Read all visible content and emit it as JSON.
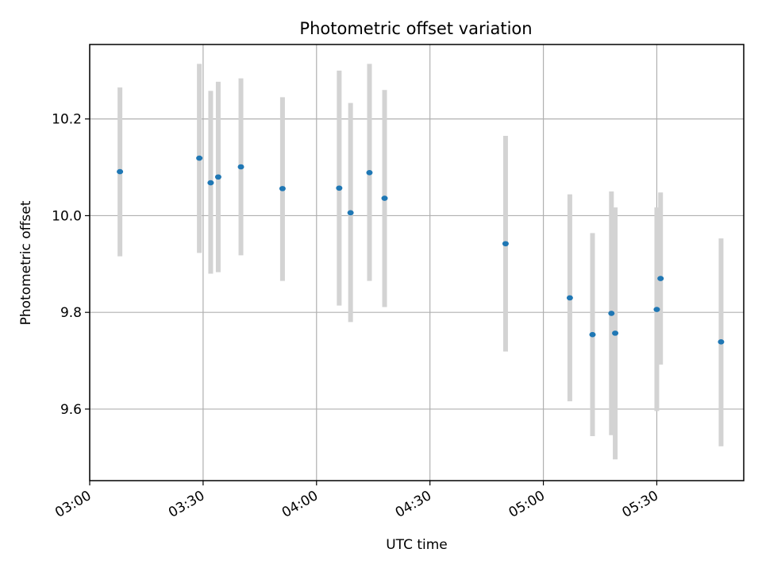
{
  "chart_data": {
    "type": "scatter",
    "title": "Photometric offset variation",
    "xlabel": "UTC time",
    "ylabel": "Photometric offset",
    "xlim": [
      "03:00",
      "05:53"
    ],
    "ylim": [
      9.452,
      10.354
    ],
    "x_ticks": [
      "03:00",
      "03:30",
      "04:00",
      "04:30",
      "05:00",
      "05:30"
    ],
    "y_ticks": [
      9.6,
      9.8,
      10.0,
      10.2
    ],
    "y_tick_labels": [
      "9.6",
      "9.8",
      "10.0",
      "10.2"
    ],
    "grid": true,
    "marker_color": "#1f77b4",
    "errorbar_color": "#d3d3d3",
    "series": [
      {
        "points": [
          {
            "x": "03:08",
            "y": 10.091,
            "err_low": 9.916,
            "err_high": 10.265
          },
          {
            "x": "03:29",
            "y": 10.119,
            "err_low": 9.923,
            "err_high": 10.314
          },
          {
            "x": "03:32",
            "y": 10.068,
            "err_low": 9.88,
            "err_high": 10.258
          },
          {
            "x": "03:34",
            "y": 10.08,
            "err_low": 9.883,
            "err_high": 10.277
          },
          {
            "x": "03:40",
            "y": 10.101,
            "err_low": 9.918,
            "err_high": 10.284
          },
          {
            "x": "03:51",
            "y": 10.056,
            "err_low": 9.865,
            "err_high": 10.245
          },
          {
            "x": "04:06",
            "y": 10.057,
            "err_low": 9.814,
            "err_high": 10.3
          },
          {
            "x": "04:09",
            "y": 10.006,
            "err_low": 9.78,
            "err_high": 10.233
          },
          {
            "x": "04:14",
            "y": 10.089,
            "err_low": 9.865,
            "err_high": 10.314
          },
          {
            "x": "04:18",
            "y": 10.036,
            "err_low": 9.811,
            "err_high": 10.26
          },
          {
            "x": "04:50",
            "y": 9.942,
            "err_low": 9.719,
            "err_high": 10.165
          },
          {
            "x": "05:07",
            "y": 9.83,
            "err_low": 9.616,
            "err_high": 10.044
          },
          {
            "x": "05:13",
            "y": 9.754,
            "err_low": 9.544,
            "err_high": 9.964
          },
          {
            "x": "05:18",
            "y": 9.798,
            "err_low": 9.546,
            "err_high": 10.05
          },
          {
            "x": "05:19",
            "y": 9.757,
            "err_low": 9.496,
            "err_high": 10.017
          },
          {
            "x": "05:30",
            "y": 9.806,
            "err_low": 9.596,
            "err_high": 10.017
          },
          {
            "x": "05:31",
            "y": 9.87,
            "err_low": 9.692,
            "err_high": 10.048
          },
          {
            "x": "05:47",
            "y": 9.739,
            "err_low": 9.523,
            "err_high": 9.953
          }
        ]
      }
    ]
  }
}
